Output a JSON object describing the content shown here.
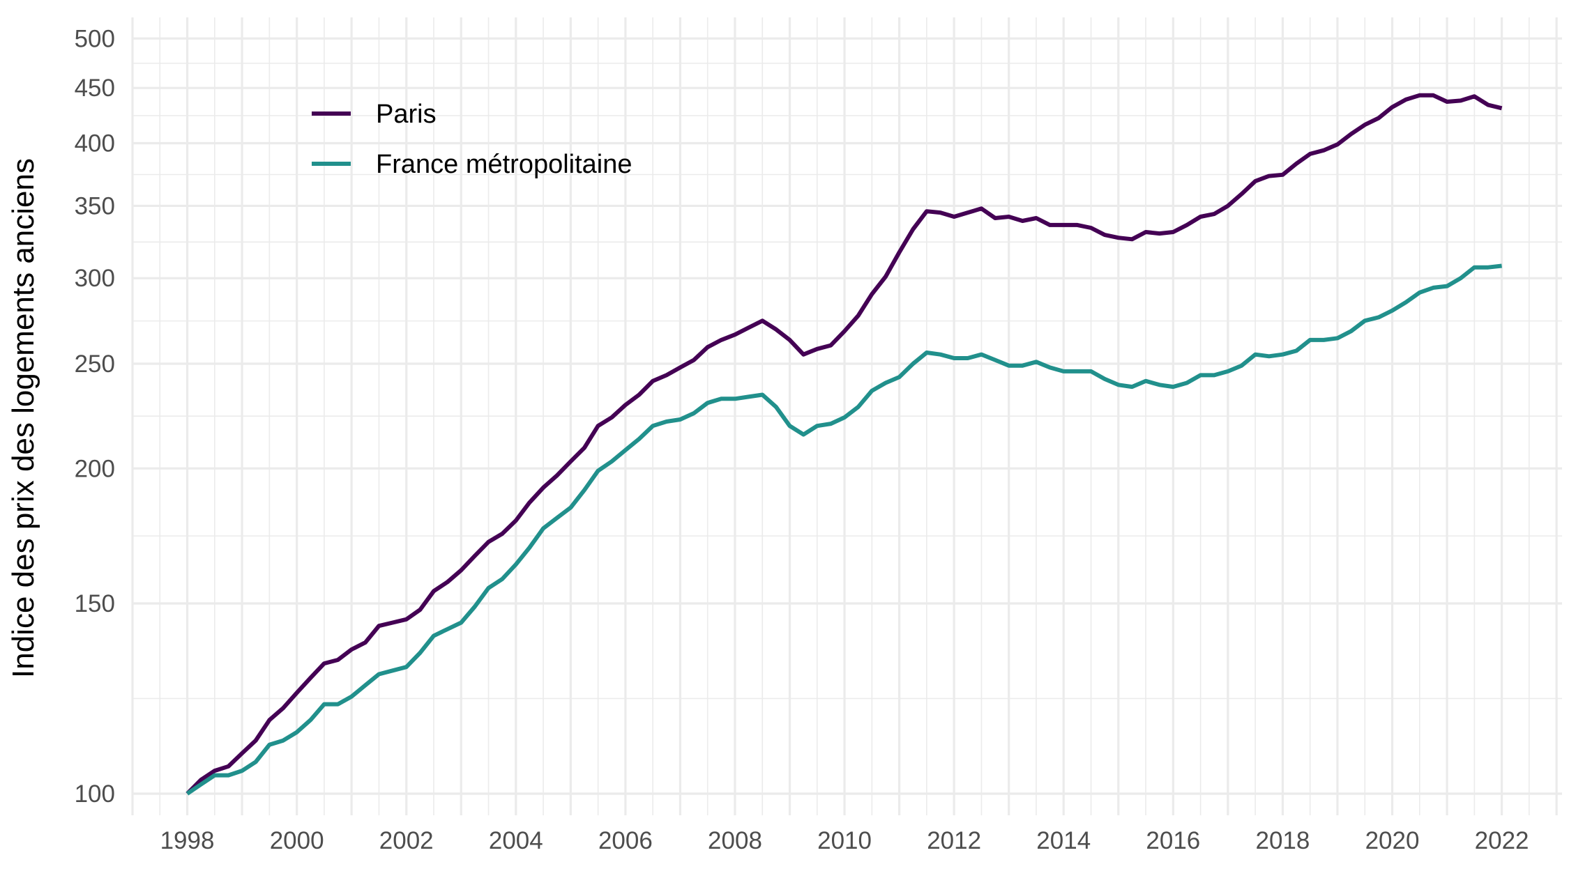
{
  "chart_data": {
    "type": "line",
    "title": "",
    "xlabel": "",
    "ylabel": "Indice des prix des logements anciens",
    "y_scale": "log",
    "ylim": [
      100,
      500
    ],
    "y_ticks": [
      "100",
      "150",
      "200",
      "250",
      "300",
      "350",
      "400",
      "450",
      "500"
    ],
    "x_ticks": [
      "1998",
      "2000",
      "2002",
      "2004",
      "2006",
      "2008",
      "2010",
      "2012",
      "2014",
      "2016",
      "2018",
      "2020",
      "2022"
    ],
    "xlim": [
      1997,
      2023.1
    ],
    "grid": true,
    "legend_position": "top-left",
    "x_start": 1998,
    "x_step": 0.25,
    "series": [
      {
        "name": "Paris",
        "color": "#440154",
        "values": [
          100,
          103,
          105,
          106,
          109,
          112,
          117,
          120,
          124,
          128,
          132,
          133,
          136,
          138,
          143,
          144,
          145,
          148,
          154,
          157,
          161,
          166,
          171,
          174,
          179,
          186,
          192,
          197,
          203,
          209,
          219,
          223,
          229,
          234,
          241,
          244,
          248,
          252,
          259,
          263,
          266,
          270,
          274,
          269,
          263,
          255,
          258,
          260,
          268,
          277,
          290,
          301,
          317,
          333,
          346,
          345,
          342,
          345,
          348,
          341,
          342,
          339,
          341,
          336,
          336,
          336,
          334,
          329,
          327,
          326,
          331,
          330,
          331,
          336,
          342,
          344,
          350,
          359,
          369,
          373,
          374,
          383,
          391,
          394,
          399,
          408,
          416,
          422,
          432,
          439,
          443,
          443,
          437,
          438,
          442,
          434,
          431
        ]
      },
      {
        "name": "France métropolitaine",
        "color": "#21908C",
        "values": [
          100,
          102,
          104,
          104,
          105,
          107,
          111,
          112,
          114,
          117,
          121,
          121,
          123,
          126,
          129,
          130,
          131,
          135,
          140,
          142,
          144,
          149,
          155,
          158,
          163,
          169,
          176,
          180,
          184,
          191,
          199,
          203,
          208,
          213,
          219,
          221,
          222,
          225,
          230,
          232,
          232,
          233,
          234,
          228,
          219,
          215,
          219,
          220,
          223,
          228,
          236,
          240,
          243,
          250,
          256,
          255,
          253,
          253,
          255,
          252,
          249,
          249,
          251,
          248,
          246,
          246,
          246,
          242,
          239,
          238,
          241,
          239,
          238,
          240,
          244,
          244,
          246,
          249,
          255,
          254,
          255,
          257,
          263,
          263,
          264,
          268,
          274,
          276,
          280,
          285,
          291,
          294,
          295,
          300,
          307,
          307,
          308
        ]
      }
    ]
  }
}
